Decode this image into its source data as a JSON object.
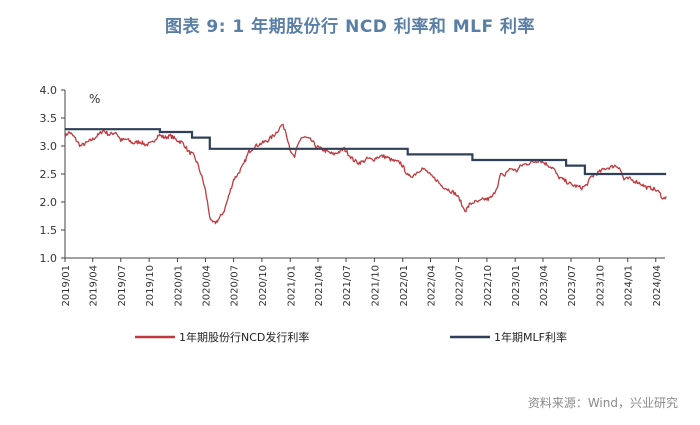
{
  "title": "图表 9:  1 年期股份行 NCD 利率和 MLF 利率",
  "source": "资料来源：Wind，兴业研究",
  "colors": {
    "ncd": "#c0393f",
    "mlf": "#2f4058",
    "axis": "#444444",
    "title": "#5a7fa6"
  },
  "chart_data": {
    "type": "line",
    "ylabel": "%",
    "ylim": [
      1.0,
      4.0
    ],
    "yticks": [
      "1.0",
      "1.5",
      "2.0",
      "2.5",
      "3.0",
      "3.5",
      "4.0"
    ],
    "xrange": [
      "2019-01",
      "2024-05"
    ],
    "xticks": [
      "2019/01",
      "2019/04",
      "2019/07",
      "2019/10",
      "2020/01",
      "2020/04",
      "2020/07",
      "2020/10",
      "2021/01",
      "2021/04",
      "2021/07",
      "2021/10",
      "2022/01",
      "2022/04",
      "2022/07",
      "2022/10",
      "2023/01",
      "2023/04",
      "2023/07",
      "2023/10",
      "2024/01",
      "2024/04"
    ],
    "legend_position": "bottom",
    "series": [
      {
        "name": "1年期股份行NCD发行利率",
        "style": "noisy",
        "points": [
          [
            "2019-01-01",
            3.18
          ],
          [
            "2019-01-15",
            3.25
          ],
          [
            "2019-02-01",
            3.15
          ],
          [
            "2019-02-20",
            3.0
          ],
          [
            "2019-03-10",
            3.05
          ],
          [
            "2019-04-01",
            3.12
          ],
          [
            "2019-04-20",
            3.2
          ],
          [
            "2019-05-05",
            3.28
          ],
          [
            "2019-05-25",
            3.2
          ],
          [
            "2019-06-15",
            3.25
          ],
          [
            "2019-07-01",
            3.1
          ],
          [
            "2019-07-20",
            3.12
          ],
          [
            "2019-08-10",
            3.05
          ],
          [
            "2019-09-01",
            3.08
          ],
          [
            "2019-09-20",
            3.02
          ],
          [
            "2019-10-10",
            3.05
          ],
          [
            "2019-11-01",
            3.2
          ],
          [
            "2019-11-20",
            3.15
          ],
          [
            "2019-12-10",
            3.18
          ],
          [
            "2020-01-01",
            3.1
          ],
          [
            "2020-01-20",
            3.05
          ],
          [
            "2020-02-05",
            2.9
          ],
          [
            "2020-02-20",
            2.85
          ],
          [
            "2020-03-05",
            2.7
          ],
          [
            "2020-03-20",
            2.45
          ],
          [
            "2020-04-01",
            2.2
          ],
          [
            "2020-04-10",
            1.9
          ],
          [
            "2020-04-18",
            1.65
          ],
          [
            "2020-05-01",
            1.62
          ],
          [
            "2020-05-15",
            1.7
          ],
          [
            "2020-06-01",
            1.85
          ],
          [
            "2020-06-15",
            2.1
          ],
          [
            "2020-07-01",
            2.4
          ],
          [
            "2020-07-15",
            2.5
          ],
          [
            "2020-08-01",
            2.65
          ],
          [
            "2020-08-20",
            2.9
          ],
          [
            "2020-09-10",
            3.0
          ],
          [
            "2020-10-01",
            3.05
          ],
          [
            "2020-10-20",
            3.1
          ],
          [
            "2020-11-10",
            3.2
          ],
          [
            "2020-11-25",
            3.3
          ],
          [
            "2020-12-05",
            3.38
          ],
          [
            "2020-12-15",
            3.3
          ],
          [
            "2020-12-25",
            3.1
          ],
          [
            "2021-01-05",
            2.85
          ],
          [
            "2021-01-15",
            2.8
          ],
          [
            "2021-01-25",
            3.0
          ],
          [
            "2021-02-05",
            3.15
          ],
          [
            "2021-02-20",
            3.15
          ],
          [
            "2021-03-10",
            3.1
          ],
          [
            "2021-03-25",
            3.0
          ],
          [
            "2021-04-10",
            2.95
          ],
          [
            "2021-05-01",
            2.9
          ],
          [
            "2021-05-20",
            2.85
          ],
          [
            "2021-06-10",
            2.9
          ],
          [
            "2021-06-25",
            2.95
          ],
          [
            "2021-07-10",
            2.85
          ],
          [
            "2021-07-25",
            2.75
          ],
          [
            "2021-08-10",
            2.7
          ],
          [
            "2021-08-25",
            2.72
          ],
          [
            "2021-09-10",
            2.78
          ],
          [
            "2021-09-25",
            2.75
          ],
          [
            "2021-10-10",
            2.8
          ],
          [
            "2021-10-25",
            2.82
          ],
          [
            "2021-11-10",
            2.8
          ],
          [
            "2021-11-25",
            2.75
          ],
          [
            "2021-12-10",
            2.72
          ],
          [
            "2021-12-25",
            2.7
          ],
          [
            "2022-01-05",
            2.6
          ],
          [
            "2022-01-20",
            2.45
          ],
          [
            "2022-02-05",
            2.48
          ],
          [
            "2022-02-20",
            2.55
          ],
          [
            "2022-03-05",
            2.6
          ],
          [
            "2022-03-20",
            2.55
          ],
          [
            "2022-04-05",
            2.45
          ],
          [
            "2022-04-20",
            2.4
          ],
          [
            "2022-05-05",
            2.3
          ],
          [
            "2022-05-20",
            2.25
          ],
          [
            "2022-06-05",
            2.2
          ],
          [
            "2022-06-20",
            2.15
          ],
          [
            "2022-07-05",
            2.05
          ],
          [
            "2022-07-15",
            1.9
          ],
          [
            "2022-07-25",
            1.85
          ],
          [
            "2022-08-05",
            1.95
          ],
          [
            "2022-08-20",
            2.0
          ],
          [
            "2022-09-05",
            2.0
          ],
          [
            "2022-09-20",
            2.05
          ],
          [
            "2022-10-05",
            2.05
          ],
          [
            "2022-10-20",
            2.1
          ],
          [
            "2022-11-05",
            2.3
          ],
          [
            "2022-11-15",
            2.5
          ],
          [
            "2022-11-25",
            2.45
          ],
          [
            "2022-12-05",
            2.55
          ],
          [
            "2022-12-20",
            2.6
          ],
          [
            "2023-01-05",
            2.55
          ],
          [
            "2023-01-20",
            2.65
          ],
          [
            "2023-02-05",
            2.68
          ],
          [
            "2023-02-20",
            2.7
          ],
          [
            "2023-03-05",
            2.72
          ],
          [
            "2023-03-20",
            2.75
          ],
          [
            "2023-04-05",
            2.7
          ],
          [
            "2023-04-20",
            2.65
          ],
          [
            "2023-05-05",
            2.6
          ],
          [
            "2023-05-20",
            2.45
          ],
          [
            "2023-06-05",
            2.4
          ],
          [
            "2023-06-20",
            2.35
          ],
          [
            "2023-07-05",
            2.3
          ],
          [
            "2023-07-20",
            2.28
          ],
          [
            "2023-08-05",
            2.25
          ],
          [
            "2023-08-20",
            2.3
          ],
          [
            "2023-09-05",
            2.45
          ],
          [
            "2023-09-20",
            2.5
          ],
          [
            "2023-10-05",
            2.55
          ],
          [
            "2023-10-20",
            2.6
          ],
          [
            "2023-11-05",
            2.62
          ],
          [
            "2023-11-20",
            2.65
          ],
          [
            "2023-12-05",
            2.62
          ],
          [
            "2023-12-20",
            2.4
          ],
          [
            "2024-01-05",
            2.42
          ],
          [
            "2024-01-20",
            2.38
          ],
          [
            "2024-02-05",
            2.35
          ],
          [
            "2024-02-20",
            2.3
          ],
          [
            "2024-03-05",
            2.25
          ],
          [
            "2024-03-20",
            2.25
          ],
          [
            "2024-04-05",
            2.2
          ],
          [
            "2024-04-15",
            2.15
          ],
          [
            "2024-04-25",
            2.05
          ],
          [
            "2024-05-05",
            2.1
          ]
        ]
      },
      {
        "name": "1年期MLF利率",
        "style": "step",
        "points": [
          [
            "2019-01-01",
            3.3
          ],
          [
            "2019-11-05",
            3.25
          ],
          [
            "2020-02-17",
            3.15
          ],
          [
            "2020-04-15",
            2.95
          ],
          [
            "2022-01-17",
            2.85
          ],
          [
            "2022-08-15",
            2.75
          ],
          [
            "2023-06-15",
            2.65
          ],
          [
            "2023-08-15",
            2.5
          ],
          [
            "2024-05-05",
            2.5
          ]
        ]
      }
    ]
  }
}
